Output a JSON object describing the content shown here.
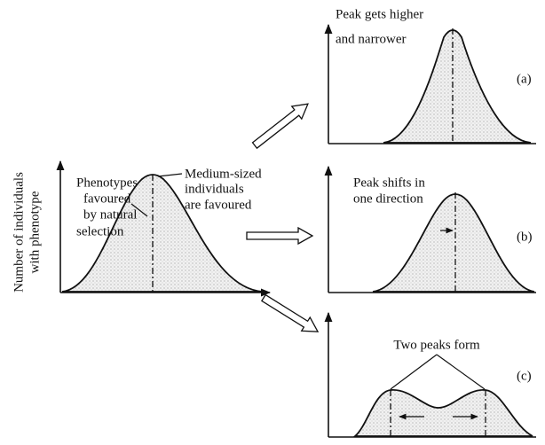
{
  "main_panel": {
    "y_axis_label": [
      "Number of individuals",
      "with phenotype"
    ],
    "left_annotation": [
      "Phenotypes",
      "favoured",
      "by natural",
      "selection"
    ],
    "right_annotation": [
      "Medium-sized",
      "individuals",
      "are favoured"
    ]
  },
  "panels": [
    {
      "label": "(a)",
      "caption": [
        "Peak gets higher",
        "and narrower"
      ]
    },
    {
      "label": "(b)",
      "caption": [
        "Peak shifts in",
        "one direction"
      ]
    },
    {
      "label": "(c)",
      "caption": [
        "Two peaks form"
      ]
    }
  ]
}
